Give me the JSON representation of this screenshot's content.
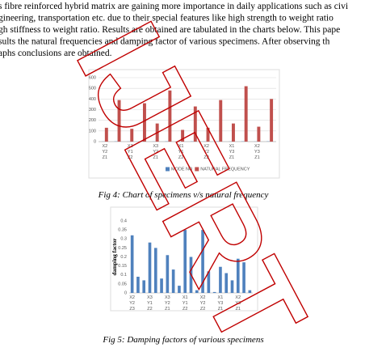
{
  "paragraph": [
    "s fibre reinforced hybrid matrix are gaining more importance in daily applications such as civi",
    "gineering, transportation etc. due to their special features like high strength to weight ratio",
    "gh stiffness to weight ratio. Results are obtained are tabulated in the charts below. This pape",
    "sults the natural frequencies and damping factor of various specimens. After observing th",
    "aphs conclusions are obtained."
  ],
  "watermark": "IJERT",
  "captions": [
    "Fig 4: Chart of specimens v/s natural frequency",
    "Fig 5: Damping factors of various specimens"
  ],
  "chart_data": [
    {
      "type": "bar",
      "categories": [
        "X2 Y2 Z1",
        null,
        "X3 Y1 Z2",
        null,
        "X3 Y2 Z1",
        null,
        "X1 Y1 Z2",
        null,
        "X2 Y2 Z2",
        null,
        "X1 Y3 Z1",
        null,
        "X2 Y3 Z1",
        null
      ],
      "series": [
        {
          "name": "MODE NO",
          "color": "#4f81bd",
          "values": [
            1,
            2,
            1,
            2,
            1,
            2,
            1,
            2,
            1,
            2,
            1,
            2,
            1,
            2
          ]
        },
        {
          "name": "NATURAL FREQUENCY",
          "color": "#c0504d",
          "values": [
            130,
            390,
            120,
            360,
            170,
            480,
            110,
            330,
            130,
            390,
            170,
            520,
            140,
            400
          ]
        }
      ],
      "ylim": [
        0,
        600
      ],
      "yticks": [
        0,
        100,
        200,
        300,
        400,
        500,
        600
      ],
      "grid": true,
      "legend": "bottom"
    },
    {
      "type": "bar",
      "y_label": "damping factor",
      "categories": [
        "X2 Y2 Z3",
        null,
        null,
        "X3 Y1 Z2",
        null,
        null,
        "X3 Y2 Z1",
        null,
        null,
        "X1 Y1 Z2",
        null,
        null,
        "X2 Y2 Z2",
        null,
        null,
        "X1 Y3 Z1",
        null,
        null,
        "X2 Y3 Z1",
        null,
        null
      ],
      "series": [
        {
          "color": "#4f81bd",
          "values": [
            0.32,
            0.09,
            0.07,
            0.28,
            0.25,
            0.08,
            0.21,
            0.13,
            0.04,
            0.35,
            0.2,
            0.015,
            0.35,
            0.12,
            0.005,
            0.145,
            0.11,
            0.07,
            0.19,
            0.17,
            0.015
          ]
        }
      ],
      "ylim": [
        0,
        0.4
      ],
      "yticks": [
        0,
        0.05,
        0.1,
        0.15,
        0.2,
        0.25,
        0.3,
        0.35,
        0.4
      ],
      "grid": false
    }
  ]
}
